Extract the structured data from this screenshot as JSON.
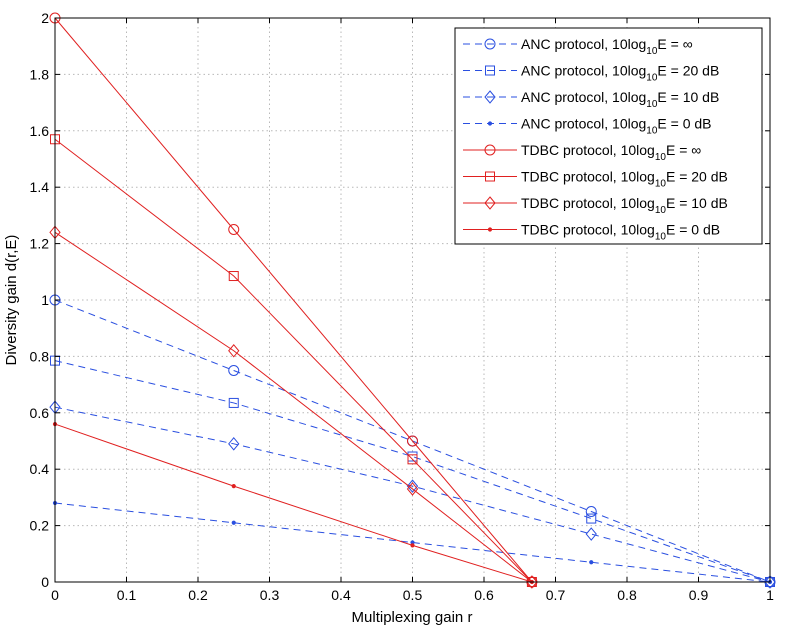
{
  "chart_data": {
    "type": "line",
    "title": "",
    "xlabel": "Multiplexing gain r",
    "ylabel": "Diversity gain d(r,E)",
    "xlim": [
      0,
      1
    ],
    "ylim": [
      0,
      2
    ],
    "xticks": [
      "0",
      "0.1",
      "0.2",
      "0.3",
      "0.4",
      "0.5",
      "0.6",
      "0.7",
      "0.8",
      "0.9",
      "1"
    ],
    "yticks": [
      "0",
      "0.2",
      "0.4",
      "0.6",
      "0.8",
      "1",
      "1.2",
      "1.4",
      "1.6",
      "1.8",
      "2"
    ],
    "xtick_values": [
      0,
      0.1,
      0.2,
      0.3,
      0.4,
      0.5,
      0.6,
      0.7,
      0.8,
      0.9,
      1
    ],
    "ytick_values": [
      0,
      0.2,
      0.4,
      0.6,
      0.8,
      1,
      1.2,
      1.4,
      1.6,
      1.8,
      2
    ],
    "grid": true,
    "legend_position": "top-right",
    "colors": {
      "anc": "#2a4fe0",
      "tdbc": "#e02020"
    },
    "series": [
      {
        "name": "ANC protocol, 10log10E = ∞",
        "protocol": "ANC",
        "prefix": "ANC protocol, 10log",
        "sub": "10",
        "suffix": "E = ∞",
        "marker": "circle",
        "style": "dashed",
        "x": [
          0,
          0.25,
          0.5,
          0.75,
          1
        ],
        "y": [
          1.0,
          0.75,
          0.5,
          0.25,
          0
        ]
      },
      {
        "name": "ANC protocol, 10log10E = 20 dB",
        "protocol": "ANC",
        "prefix": "ANC protocol, 10log",
        "sub": "10",
        "suffix": "E = 20 dB",
        "marker": "square",
        "style": "dashed",
        "x": [
          0,
          0.25,
          0.5,
          0.75,
          1
        ],
        "y": [
          0.785,
          0.635,
          0.445,
          0.225,
          0
        ]
      },
      {
        "name": "ANC protocol, 10log10E = 10 dB",
        "protocol": "ANC",
        "prefix": "ANC protocol, 10log",
        "sub": "10",
        "suffix": "E = 10 dB",
        "marker": "diamond",
        "style": "dashed",
        "x": [
          0,
          0.25,
          0.5,
          0.75,
          1
        ],
        "y": [
          0.62,
          0.49,
          0.34,
          0.17,
          0
        ]
      },
      {
        "name": "ANC protocol, 10log10E = 0 dB",
        "protocol": "ANC",
        "prefix": "ANC protocol, 10log",
        "sub": "10",
        "suffix": "E = 0 dB",
        "marker": "dot",
        "style": "dashed",
        "x": [
          0,
          0.25,
          0.5,
          0.75,
          1
        ],
        "y": [
          0.28,
          0.21,
          0.14,
          0.07,
          0
        ]
      },
      {
        "name": "TDBC protocol, 10log10E = ∞",
        "protocol": "TDBC",
        "prefix": "TDBC protocol, 10log",
        "sub": "10",
        "suffix": "E = ∞",
        "marker": "circle",
        "style": "solid",
        "x": [
          0,
          0.25,
          0.5,
          0.667
        ],
        "y": [
          2.0,
          1.25,
          0.5,
          0
        ]
      },
      {
        "name": "TDBC protocol, 10log10E = 20 dB",
        "protocol": "TDBC",
        "prefix": "TDBC protocol, 10log",
        "sub": "10",
        "suffix": "E = 20 dB",
        "marker": "square",
        "style": "solid",
        "x": [
          0,
          0.25,
          0.5,
          0.667
        ],
        "y": [
          1.57,
          1.085,
          0.435,
          0
        ]
      },
      {
        "name": "TDBC protocol, 10log10E = 10 dB",
        "protocol": "TDBC",
        "prefix": "TDBC protocol, 10log",
        "sub": "10",
        "suffix": "E = 10 dB",
        "marker": "diamond",
        "style": "solid",
        "x": [
          0,
          0.25,
          0.5,
          0.667
        ],
        "y": [
          1.24,
          0.82,
          0.33,
          0
        ]
      },
      {
        "name": "TDBC protocol, 10log10E = 0 dB",
        "protocol": "TDBC",
        "prefix": "TDBC protocol, 10log",
        "sub": "10",
        "suffix": "E = 0 dB",
        "marker": "dot",
        "style": "solid",
        "x": [
          0,
          0.25,
          0.5,
          0.667
        ],
        "y": [
          0.56,
          0.34,
          0.13,
          0
        ]
      }
    ]
  }
}
